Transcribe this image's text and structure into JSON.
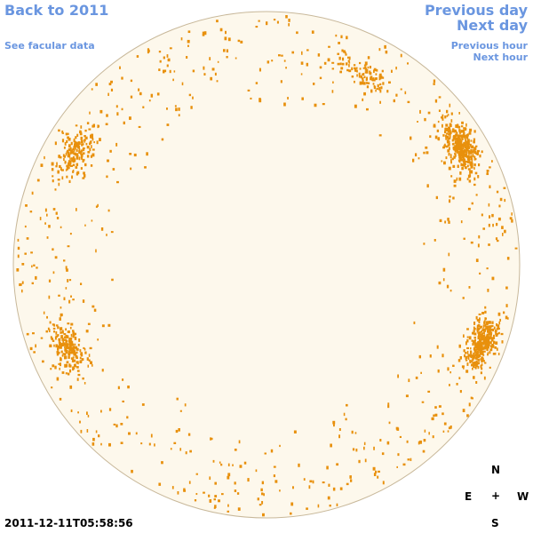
{
  "links": {
    "back": "Back to 2011",
    "facular": "See facular data",
    "previous_day": "Previous day",
    "next_day": "Next day",
    "previous_hour": "Previous hour",
    "next_hour": "Next hour"
  },
  "timestamp": "2011-12-11T05:58:56",
  "compass": {
    "north": "N",
    "east": "E",
    "center": "+",
    "west": "W",
    "south": "S"
  }
}
